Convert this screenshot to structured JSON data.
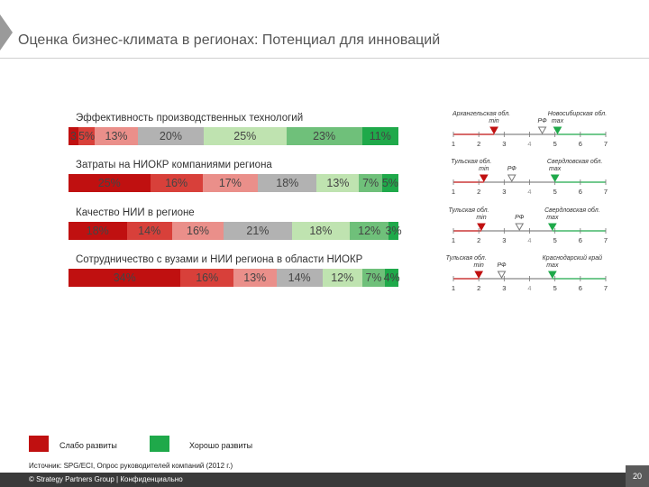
{
  "header": {
    "title": "Оценка бизнес-климата в регионах:  Потенциал для инноваций"
  },
  "colors": [
    "#c01010",
    "#d8403a",
    "#ea8f8a",
    "#b2b2b2",
    "#bfe3b0",
    "#6fc07a",
    "#1fa94a"
  ],
  "chart_data": {
    "type": "bar",
    "orientation": "horizontal-stacked-100",
    "categories": [
      "Эффективность производственных технологий",
      "Затраты на НИОКР компаниями региона",
      "Качество НИИ в регионе",
      "Сотрудничество с вузами и НИИ региона в области НИОКР"
    ],
    "rows": [
      {
        "segments": [
          {
            "level": 1,
            "value": 3,
            "label": "3"
          },
          {
            "level": 2,
            "value": 5,
            "label": "5%"
          },
          {
            "level": 3,
            "value": 13,
            "label": "13%"
          },
          {
            "level": 4,
            "value": 20,
            "label": "20%"
          },
          {
            "level": 5,
            "value": 25,
            "label": "25%"
          },
          {
            "level": 6,
            "value": 23,
            "label": "23%"
          },
          {
            "level": 7,
            "value": 11,
            "label": "11%"
          }
        ]
      },
      {
        "segments": [
          {
            "level": 1,
            "value": 25,
            "label": "25%"
          },
          {
            "level": 2,
            "value": 16,
            "label": "16%"
          },
          {
            "level": 3,
            "value": 17,
            "label": "17%"
          },
          {
            "level": 4,
            "value": 18,
            "label": "18%"
          },
          {
            "level": 5,
            "value": 13,
            "label": "13%"
          },
          {
            "level": 6,
            "value": 7,
            "label": "7%"
          },
          {
            "level": 7,
            "value": 5,
            "label": "5%"
          }
        ]
      },
      {
        "segments": [
          {
            "level": 1,
            "value": 18,
            "label": "18%"
          },
          {
            "level": 2,
            "value": 14,
            "label": "14%"
          },
          {
            "level": 3,
            "value": 16,
            "label": "16%"
          },
          {
            "level": 4,
            "value": 21,
            "label": "21%"
          },
          {
            "level": 5,
            "value": 18,
            "label": "18%"
          },
          {
            "level": 6,
            "value": 12,
            "label": "12%"
          },
          {
            "level": 7,
            "value": 3,
            "label": "3%"
          }
        ]
      },
      {
        "segments": [
          {
            "level": 1,
            "value": 34,
            "label": "34%"
          },
          {
            "level": 2,
            "value": 16,
            "label": "16%"
          },
          {
            "level": 3,
            "value": 13,
            "label": "13%"
          },
          {
            "level": 4,
            "value": 14,
            "label": "14%"
          },
          {
            "level": 5,
            "value": 12,
            "label": "12%"
          },
          {
            "level": 6,
            "value": 7,
            "label": "7%"
          },
          {
            "level": 7,
            "value": 4,
            "label": "4%"
          }
        ]
      }
    ],
    "scale_ticks": [
      "1",
      "2",
      "3",
      "4",
      "5",
      "6",
      "7"
    ],
    "scales": [
      {
        "min_region": "Архангельская обл.",
        "min_word": "min",
        "min_value": 2.6,
        "rf_label": "РФ",
        "rf_value": 4.5,
        "max_region": "Новосибирская обл.",
        "max_word": "max",
        "max_value": 5.1
      },
      {
        "min_region": "Тульская обл.",
        "min_word": "min",
        "min_value": 2.2,
        "rf_label": "РФ",
        "rf_value": 3.3,
        "max_region": "Свердловская обл.",
        "max_word": "max",
        "max_value": 5.0
      },
      {
        "min_region": "Тульская обл.",
        "min_word": "min",
        "min_value": 2.1,
        "rf_label": "РФ",
        "rf_value": 3.6,
        "max_region": "Свердловская обл.",
        "max_word": "max",
        "max_value": 4.9
      },
      {
        "min_region": "Тульская обл.",
        "min_word": "min",
        "min_value": 2.0,
        "rf_label": "РФ",
        "rf_value": 2.9,
        "max_region": "Краснодарский край",
        "max_word": "max",
        "max_value": 4.9
      }
    ]
  },
  "legend": {
    "weak": "Слабо развиты",
    "good": "Хорошо развиты"
  },
  "source": "Источник: SPG/ECI, Опрос руководителей компаний (2012 г.)",
  "footer": {
    "text": "© Strategy Partners Group  |  Конфиденциально",
    "page": "20"
  }
}
